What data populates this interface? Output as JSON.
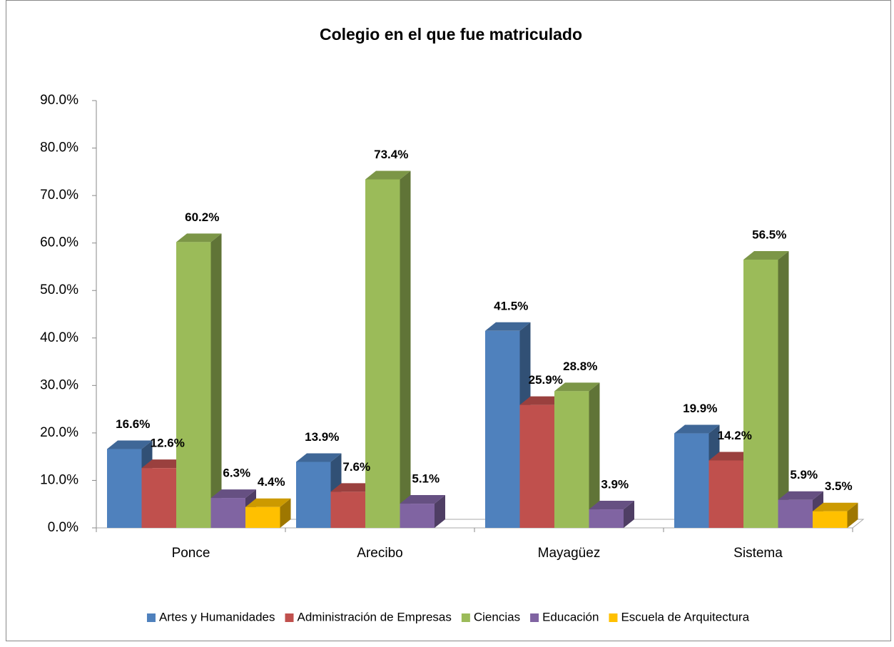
{
  "chart_data": {
    "type": "bar3d",
    "title": "Colegio en el que fue matriculado",
    "categories": [
      "Ponce",
      "Arecibo",
      "Mayagüez",
      "Sistema"
    ],
    "series": [
      {
        "name": "Artes y Humanidades",
        "color": "#4f81bd",
        "values": [
          16.6,
          13.9,
          41.5,
          19.9
        ],
        "value_labels": [
          "16.6%",
          "13.9%",
          "41.5%",
          "19.9%"
        ]
      },
      {
        "name": "Administración de Empresas",
        "color": "#c0504d",
        "values": [
          12.6,
          7.6,
          25.9,
          14.2
        ],
        "value_labels": [
          "12.6%",
          "7.6%",
          "25.9%",
          "14.2%"
        ]
      },
      {
        "name": "Ciencias",
        "color": "#9bbb59",
        "values": [
          60.2,
          73.4,
          28.8,
          56.5
        ],
        "value_labels": [
          "60.2%",
          "73.4%",
          "28.8%",
          "56.5%"
        ]
      },
      {
        "name": "Educación",
        "color": "#8064a2",
        "values": [
          6.3,
          5.1,
          3.9,
          5.9
        ],
        "value_labels": [
          "6.3%",
          "5.1%",
          "3.9%",
          "5.9%"
        ]
      },
      {
        "name": "Escuela de Arquitectura",
        "color": "#ffc000",
        "values": [
          4.4,
          null,
          null,
          3.5
        ],
        "value_labels": [
          "4.4%",
          null,
          null,
          "3.5%"
        ]
      }
    ],
    "ylim": [
      0,
      90
    ],
    "yticks": [
      {
        "value": 0,
        "label": "0.0%"
      },
      {
        "value": 10,
        "label": "10.0%"
      },
      {
        "value": 20,
        "label": "20.0%"
      },
      {
        "value": 30,
        "label": "30.0%"
      },
      {
        "value": 40,
        "label": "40.0%"
      },
      {
        "value": 50,
        "label": "50.0%"
      },
      {
        "value": 60,
        "label": "60.0%"
      },
      {
        "value": 70,
        "label": "70.0%"
      },
      {
        "value": 80,
        "label": "80.0%"
      },
      {
        "value": 90,
        "label": "90.0%"
      }
    ],
    "legend": "bottom"
  }
}
